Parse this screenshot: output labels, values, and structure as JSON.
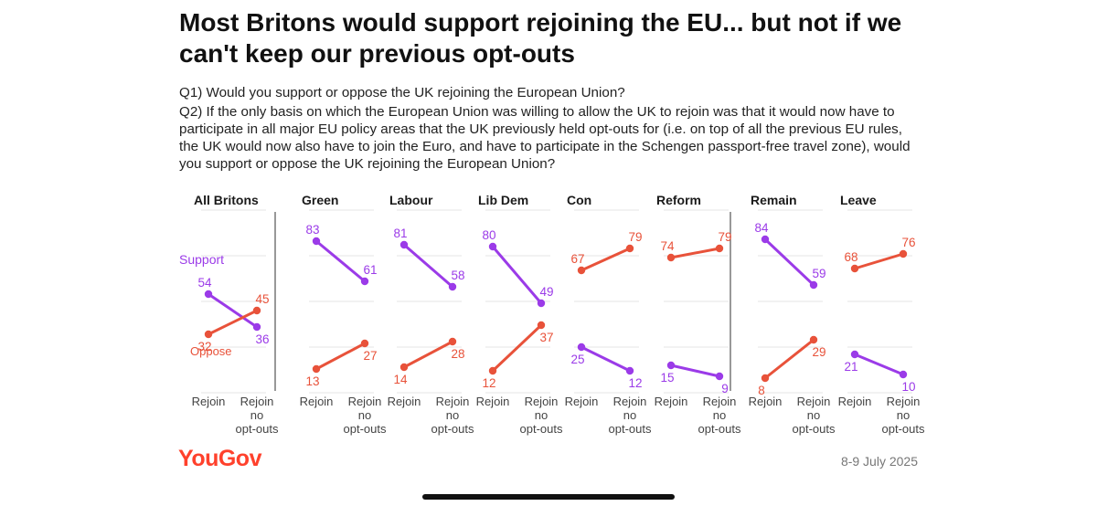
{
  "title": "Most Britons would support rejoining the EU... but not if we can't keep our previous opt-outs",
  "questions": {
    "q1": "Q1) Would you support or oppose the UK rejoining the European Union?",
    "q2": "Q2) If the only basis on which the European Union was willing to allow the UK to rejoin was that it would now have to participate in all major EU policy areas that the UK previously held opt-outs for (i.e. on top of all the previous EU rules, the UK would now also have to join the Euro, and have to participate in the Schengen passport-free travel zone), would you support or oppose the UK rejoining the European Union?"
  },
  "branding": {
    "logo": "YouGov",
    "date": "8-9 July 2025"
  },
  "colors": {
    "support": "#9b3be8",
    "oppose": "#e8523a",
    "brand": "#ff412c",
    "grid": "#e6e6e6",
    "divider": "#555555"
  },
  "chart_data": {
    "type": "line",
    "x": [
      "Rejoin",
      "Rejoin no opt-outs"
    ],
    "ylim": [
      0,
      100
    ],
    "series_labels": {
      "support": "Support",
      "oppose": "Oppose"
    },
    "panels": [
      {
        "name": "All Britons",
        "support": [
          54,
          36
        ],
        "oppose": [
          32,
          45
        ]
      },
      {
        "name": "Green",
        "support": [
          83,
          61
        ],
        "oppose": [
          13,
          27
        ]
      },
      {
        "name": "Labour",
        "support": [
          81,
          58
        ],
        "oppose": [
          14,
          28
        ]
      },
      {
        "name": "Lib Dem",
        "support": [
          80,
          49
        ],
        "oppose": [
          12,
          37
        ]
      },
      {
        "name": "Con",
        "support": [
          25,
          12
        ],
        "oppose": [
          67,
          79
        ]
      },
      {
        "name": "Reform",
        "support": [
          15,
          9
        ],
        "oppose": [
          74,
          79
        ]
      },
      {
        "name": "Remain",
        "support": [
          84,
          59
        ],
        "oppose": [
          8,
          29
        ]
      },
      {
        "name": "Leave",
        "support": [
          21,
          10
        ],
        "oppose": [
          68,
          76
        ]
      }
    ],
    "grid": true,
    "legend_placement": "inline-left"
  }
}
